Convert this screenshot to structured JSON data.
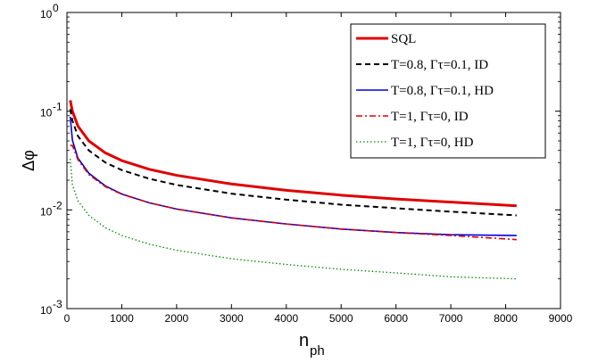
{
  "chart_data": {
    "type": "line",
    "title": "",
    "xlabel": "n",
    "xlabel_sub": "ph",
    "ylabel": "Δφ",
    "xlim": [
      0,
      9000
    ],
    "ylim": [
      0.001,
      1
    ],
    "yscale": "log",
    "grid": false,
    "legend_position": "top-right",
    "x_ticks": [
      0,
      1000,
      2000,
      3000,
      4000,
      5000,
      6000,
      7000,
      8000,
      9000
    ],
    "x_tick_labels": [
      "0",
      "1000",
      "2000",
      "3000",
      "4000",
      "5000",
      "6000",
      "7000",
      "8000",
      "9000"
    ],
    "y_ticks": [
      {
        "value": 0.001,
        "base": "10",
        "exp": "-3"
      },
      {
        "value": 0.01,
        "base": "10",
        "exp": "-2"
      },
      {
        "value": 0.1,
        "base": "10",
        "exp": "-1"
      },
      {
        "value": 1,
        "base": "10",
        "exp": "0"
      }
    ],
    "x": [
      60,
      100,
      200,
      400,
      700,
      1000,
      1500,
      2000,
      3000,
      4000,
      5000,
      6000,
      7000,
      8200
    ],
    "series": [
      {
        "name": "SQL",
        "color": "#e00000",
        "style": "solid",
        "width": 3,
        "values": [
          0.129,
          0.1,
          0.0707,
          0.05,
          0.0378,
          0.0316,
          0.0258,
          0.0224,
          0.0183,
          0.0158,
          0.0141,
          0.0129,
          0.012,
          0.011
        ]
      },
      {
        "name": "T=0.8, Γτ=0.1, ID",
        "color": "#000000",
        "style": "dashed",
        "width": 2,
        "values": [
          0.105,
          0.08,
          0.056,
          0.04,
          0.0302,
          0.0253,
          0.0207,
          0.0179,
          0.0146,
          0.0127,
          0.0113,
          0.0104,
          0.0096,
          0.0088
        ]
      },
      {
        "name": "T=0.8, Γτ=0.1, HD",
        "color": "#0000dd",
        "style": "solid",
        "width": 1.6,
        "values": [
          0.088,
          0.0507,
          0.0335,
          0.0235,
          0.0175,
          0.0145,
          0.0118,
          0.0102,
          0.0083,
          0.0072,
          0.0064,
          0.0059,
          0.0056,
          0.0055
        ]
      },
      {
        "name": "T=1, Γτ=0, ID",
        "color": "#e00000",
        "style": "dashdot",
        "width": 1.6,
        "values": [
          0.045,
          0.045,
          0.0323,
          0.0228,
          0.0172,
          0.0144,
          0.0118,
          0.0102,
          0.0083,
          0.0072,
          0.0064,
          0.0059,
          0.0055,
          0.005
        ]
      },
      {
        "name": "T=1, Γτ=0, HD",
        "color": "#008800",
        "style": "dotted",
        "width": 1.3,
        "values": [
          0.033,
          0.018,
          0.0124,
          0.0088,
          0.0066,
          0.0055,
          0.0045,
          0.0039,
          0.0032,
          0.0028,
          0.0025,
          0.0023,
          0.0021,
          0.002
        ]
      }
    ]
  }
}
